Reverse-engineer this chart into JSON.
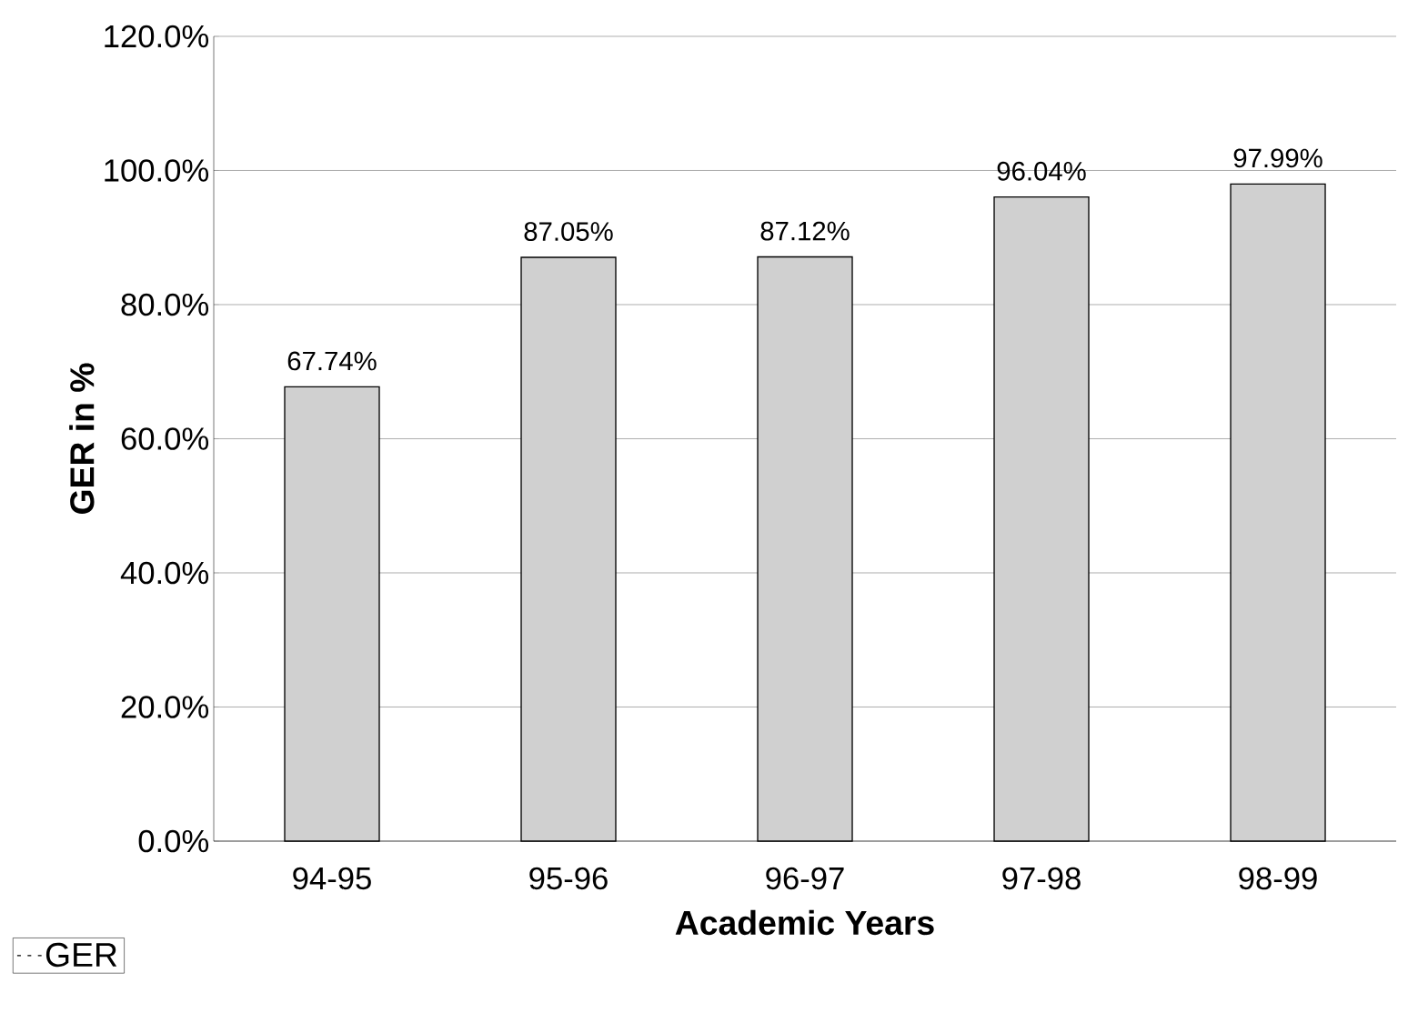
{
  "chart_data": {
    "type": "bar",
    "xlabel": "Academic Years",
    "ylabel": "GER in %",
    "categories": [
      "94-95",
      "95-96",
      "96-97",
      "97-98",
      "98-99"
    ],
    "series": [
      {
        "name": "GER",
        "color": "#d0d0d0",
        "values": [
          67.74,
          87.05,
          87.12,
          96.04,
          97.99
        ],
        "value_labels": [
          "67.74%",
          "87.05%",
          "87.12%",
          "96.04%",
          "97.99%"
        ]
      }
    ],
    "ylim": [
      0,
      120
    ],
    "yticks": [
      {
        "value": 0,
        "label": "0.0%"
      },
      {
        "value": 20,
        "label": "20.0%"
      },
      {
        "value": 40,
        "label": "40.0%"
      },
      {
        "value": 60,
        "label": "60.0%"
      },
      {
        "value": 80,
        "label": "80.0%"
      },
      {
        "value": 100,
        "label": "100.0%"
      },
      {
        "value": 120,
        "label": "120.0%"
      }
    ],
    "grid": "y",
    "legend": "bottom left"
  }
}
